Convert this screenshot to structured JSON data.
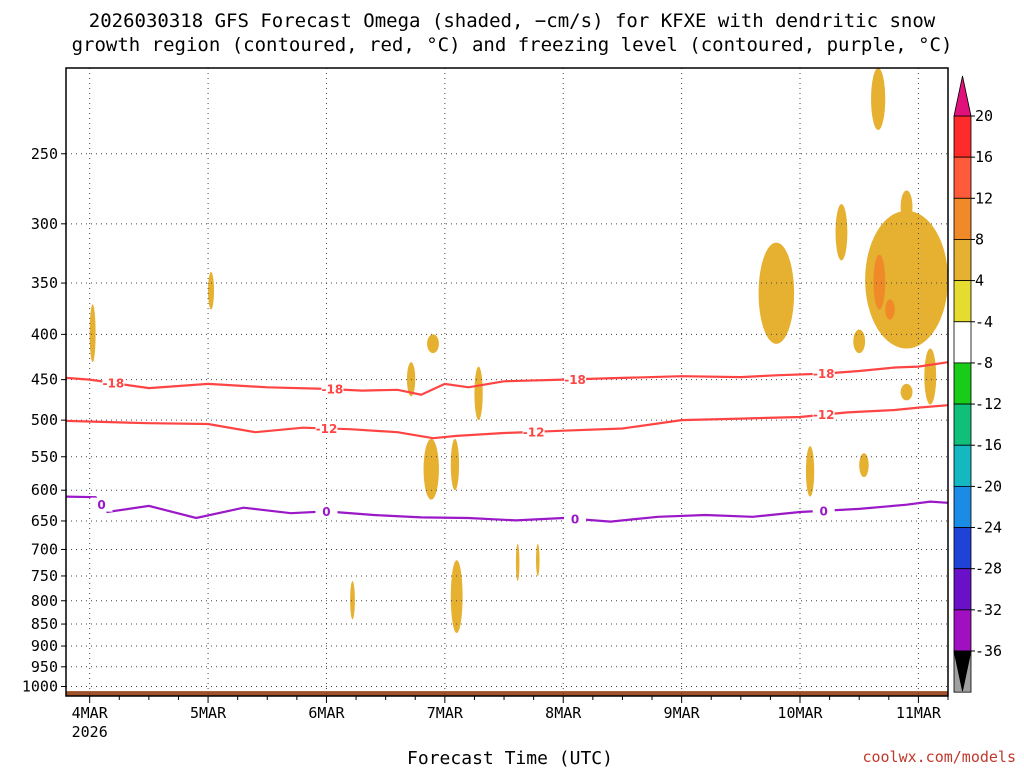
{
  "chart_data": {
    "type": "heatmap",
    "title_lines": [
      "2026030318 GFS Forecast Omega (shaded, −cm/s) for KFXE with dendritic snow",
      "growth region (contoured, red, °C) and freezing level (contoured, purple, °C)"
    ],
    "xlabel": "Forecast Time (UTC)",
    "x_ticks": [
      {
        "label": "4MAR",
        "value": 0
      },
      {
        "label": "5MAR",
        "value": 1
      },
      {
        "label": "6MAR",
        "value": 2
      },
      {
        "label": "7MAR",
        "value": 3
      },
      {
        "label": "8MAR",
        "value": 4
      },
      {
        "label": "9MAR",
        "value": 5
      },
      {
        "label": "10MAR",
        "value": 6
      },
      {
        "label": "11MAR",
        "value": 7
      }
    ],
    "x_sublabel": "2026",
    "xlim_days": [
      -0.2,
      7.25
    ],
    "y_ticks": [
      250,
      300,
      350,
      400,
      450,
      500,
      550,
      600,
      650,
      700,
      750,
      800,
      850,
      900,
      950,
      1000
    ],
    "ylim_hpa": [
      1025,
      200
    ],
    "y_scale": "log",
    "colorbar": {
      "labels": [
        "20",
        "16",
        "12",
        "8",
        "4",
        "-4",
        "-8",
        "-12",
        "-16",
        "-20",
        "-24",
        "-28",
        "-32",
        "-36"
      ],
      "bins": [
        {
          "color": "#ff2a2a"
        },
        {
          "color": "#ff5a3a"
        },
        {
          "color": "#f08a28"
        },
        {
          "color": "#e6b030"
        },
        {
          "color": "#e6dc30"
        },
        {
          "color": "#ffffff"
        },
        {
          "color": "#18cc18"
        },
        {
          "color": "#10c07a"
        },
        {
          "color": "#14b8c0"
        },
        {
          "color": "#1a8ce6"
        },
        {
          "color": "#1f42d8"
        },
        {
          "color": "#6a10c8"
        },
        {
          "color": "#a010c0"
        },
        {
          "color": "#a0a0a0"
        }
      ],
      "top_arrow_color": "#e0117a",
      "bottom_arrow_color": "#000000"
    },
    "contours": [
      {
        "label": "-18",
        "color": "#ff4444",
        "points": [
          [
            -0.2,
            448
          ],
          [
            0,
            450
          ],
          [
            0.5,
            460
          ],
          [
            1,
            455
          ],
          [
            1.5,
            459
          ],
          [
            2,
            461
          ],
          [
            2.3,
            463
          ],
          [
            2.6,
            462
          ],
          [
            2.8,
            468
          ],
          [
            3,
            455
          ],
          [
            3.2,
            459
          ],
          [
            3.5,
            452
          ],
          [
            4,
            450
          ],
          [
            4.5,
            448
          ],
          [
            5,
            446
          ],
          [
            5.5,
            447
          ],
          [
            5.8,
            445
          ],
          [
            6.2,
            443
          ],
          [
            6.5,
            440
          ],
          [
            6.8,
            436
          ],
          [
            7,
            435
          ],
          [
            7.25,
            430
          ]
        ],
        "label_at": [
          0.2,
          2.05,
          4.1,
          6.2
        ]
      },
      {
        "label": "-12",
        "color": "#ff4444",
        "points": [
          [
            -0.2,
            501
          ],
          [
            0.5,
            504
          ],
          [
            1,
            505
          ],
          [
            1.4,
            516
          ],
          [
            1.8,
            510
          ],
          [
            2.2,
            512
          ],
          [
            2.6,
            516
          ],
          [
            2.9,
            524
          ],
          [
            3.1,
            521
          ],
          [
            3.5,
            517
          ],
          [
            4,
            514
          ],
          [
            4.5,
            511
          ],
          [
            5,
            500
          ],
          [
            5.5,
            498
          ],
          [
            6,
            496
          ],
          [
            6.4,
            490
          ],
          [
            6.8,
            487
          ],
          [
            7,
            484
          ],
          [
            7.25,
            481
          ]
        ],
        "label_at": [
          2.0,
          3.75,
          6.2
        ]
      },
      {
        "label": "0",
        "color": "#9a18c8",
        "points": [
          [
            -0.2,
            610
          ],
          [
            0.05,
            611
          ],
          [
            0.15,
            635
          ],
          [
            0.5,
            625
          ],
          [
            0.9,
            645
          ],
          [
            1.3,
            628
          ],
          [
            1.7,
            637
          ],
          [
            2,
            634
          ],
          [
            2.4,
            640
          ],
          [
            2.8,
            644
          ],
          [
            3.2,
            645
          ],
          [
            3.6,
            649
          ],
          [
            4,
            645
          ],
          [
            4.4,
            651
          ],
          [
            4.8,
            643
          ],
          [
            5.2,
            640
          ],
          [
            5.6,
            643
          ],
          [
            6,
            635
          ],
          [
            6.5,
            630
          ],
          [
            6.9,
            623
          ],
          [
            7.1,
            618
          ],
          [
            7.25,
            620
          ]
        ],
        "label_at": [
          0.1,
          2.0,
          4.1,
          6.2
        ]
      }
    ],
    "shaded_features": [
      {
        "value": -6,
        "d0": 0.08,
        "d1": 0.25,
        "p0": 880,
        "p1": 975
      },
      {
        "value": -6,
        "d0": 3.05,
        "d1": 3.15,
        "p0": 205,
        "p1": 270
      },
      {
        "value": -6,
        "d0": 2.65,
        "d1": 2.72,
        "p0": 330,
        "p1": 375
      },
      {
        "value": -6,
        "d0": 2.25,
        "d1": 2.32,
        "p0": 275,
        "p1": 290
      },
      {
        "value": -6,
        "d0": 2.54,
        "d1": 2.59,
        "p0": 302,
        "p1": 312
      },
      {
        "value": -6,
        "d0": 3.45,
        "d1": 3.55,
        "p0": 360,
        "p1": 385
      },
      {
        "value": -6,
        "d0": 3.68,
        "d1": 3.78,
        "p0": 365,
        "p1": 420
      },
      {
        "value": -6,
        "d0": 3.07,
        "d1": 3.1,
        "p0": 290,
        "p1": 360
      },
      {
        "value": -6,
        "d0": 6.0,
        "d1": 6.1,
        "p0": 255,
        "p1": 300
      },
      {
        "value": -6,
        "d0": 3.0,
        "d1": 3.05,
        "p0": 590,
        "p1": 680
      },
      {
        "value": -6,
        "d0": 3.45,
        "d1": 3.48,
        "p0": 555,
        "p1": 620
      },
      {
        "value": 6,
        "d0": 0.0,
        "d1": 0.05,
        "p0": 370,
        "p1": 430
      },
      {
        "value": 6,
        "d0": 1.0,
        "d1": 1.05,
        "p0": 340,
        "p1": 375
      },
      {
        "value": 6,
        "d0": 2.85,
        "d1": 2.95,
        "p0": 400,
        "p1": 420
      },
      {
        "value": 6,
        "d0": 2.68,
        "d1": 2.75,
        "p0": 430,
        "p1": 470
      },
      {
        "value": 6,
        "d0": 2.82,
        "d1": 2.95,
        "p0": 525,
        "p1": 615
      },
      {
        "value": 6,
        "d0": 3.05,
        "d1": 3.12,
        "p0": 525,
        "p1": 600
      },
      {
        "value": 6,
        "d0": 3.25,
        "d1": 3.32,
        "p0": 435,
        "p1": 500
      },
      {
        "value": 6,
        "d0": 3.05,
        "d1": 3.15,
        "p0": 720,
        "p1": 870
      },
      {
        "value": 6,
        "d0": 2.2,
        "d1": 2.24,
        "p0": 760,
        "p1": 840
      },
      {
        "value": 6,
        "d0": 3.6,
        "d1": 3.63,
        "p0": 690,
        "p1": 760
      },
      {
        "value": 6,
        "d0": 3.77,
        "d1": 3.8,
        "p0": 690,
        "p1": 750
      },
      {
        "value": 6,
        "d0": 5.65,
        "d1": 5.95,
        "p0": 315,
        "p1": 410
      },
      {
        "value": 6,
        "d0": 6.3,
        "d1": 6.4,
        "p0": 285,
        "p1": 330
      },
      {
        "value": 6,
        "d0": 6.6,
        "d1": 6.72,
        "p0": 200,
        "p1": 235
      },
      {
        "value": 6,
        "d0": 6.55,
        "d1": 7.25,
        "p0": 290,
        "p1": 415
      },
      {
        "value": 6,
        "d0": 6.85,
        "d1": 6.95,
        "p0": 275,
        "p1": 300
      },
      {
        "value": 6,
        "d0": 6.45,
        "d1": 6.55,
        "p0": 395,
        "p1": 420
      },
      {
        "value": 6,
        "d0": 7.05,
        "d1": 7.15,
        "p0": 415,
        "p1": 480
      },
      {
        "value": 6,
        "d0": 6.85,
        "d1": 6.95,
        "p0": 455,
        "p1": 475
      },
      {
        "value": 6,
        "d0": 6.05,
        "d1": 6.12,
        "p0": 535,
        "p1": 610
      },
      {
        "value": 6,
        "d0": 6.5,
        "d1": 6.58,
        "p0": 545,
        "p1": 580
      },
      {
        "value": 10,
        "d0": 6.62,
        "d1": 6.72,
        "p0": 325,
        "p1": 375
      },
      {
        "value": 10,
        "d0": 6.72,
        "d1": 6.8,
        "p0": 365,
        "p1": 385
      }
    ],
    "ground_band": {
      "p0": 1012,
      "p1": 1025,
      "color": "#a0522d"
    }
  },
  "credit": "coolwx.com/models"
}
